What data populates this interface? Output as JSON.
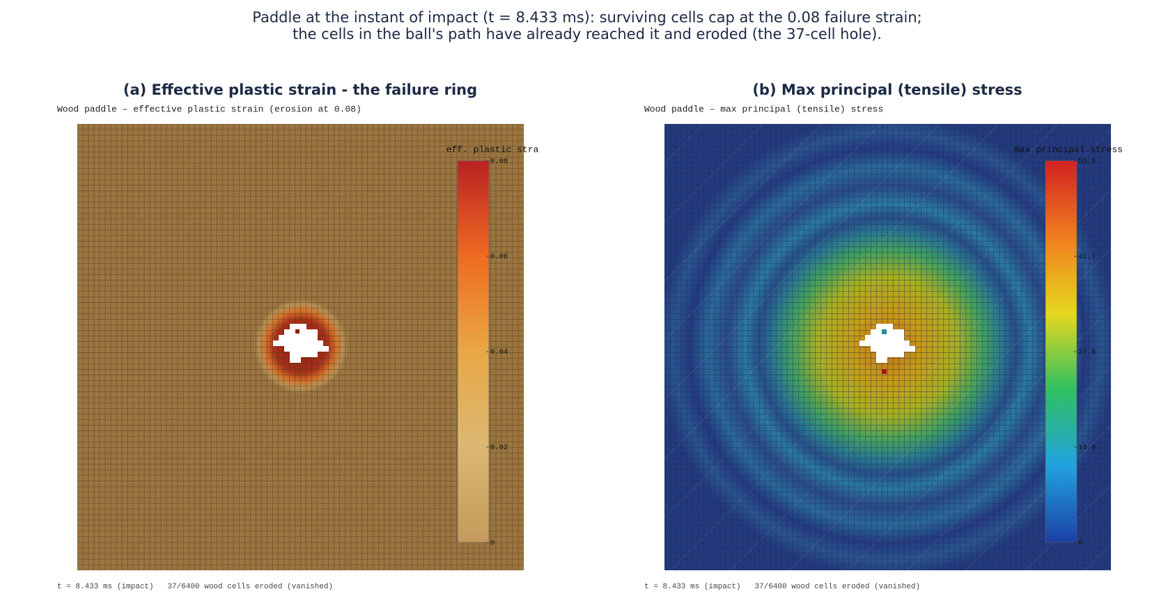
{
  "header": {
    "title_lines": [
      "Paddle at the instant of impact (t = 8.433 ms): surviving cells cap at the 0.08 failure strain;",
      "the cells in the ball's path have already reached it and eroded (the 37-cell hole)."
    ]
  },
  "panels": [
    {
      "title": "(a) Effective plastic strain - the failure ring",
      "subtitle": "Wood paddle – effective plastic strain (erosion at 0.08)",
      "footer": "t = 8.433 ms (impact)   37/6400 wood cells eroded (vanished)",
      "colorbar": {
        "title": "eff. plastic stra",
        "lim": [
          0,
          0.08
        ],
        "ticks": [
          0,
          0.02,
          0.04,
          0.06,
          0.08
        ],
        "colors": [
          "#c39a5c",
          "#dbb872",
          "#e8a845",
          "#ef6a22",
          "#b82222"
        ]
      }
    },
    {
      "title": "(b) Max principal (tensile) stress",
      "subtitle": "Wood paddle – max principal (tensile) stress",
      "footer": "t = 8.433 ms (impact)   37/6400 wood cells eroded (vanished)",
      "colorbar": {
        "title": "max principal stress",
        "lim": [
          0,
          55.6
        ],
        "ticks": [
          0,
          13.9,
          27.8,
          41.7,
          55.6
        ],
        "colors": [
          "#1b3fa6",
          "#21a2df",
          "#2fc062",
          "#e6d81e",
          "#f07d1f",
          "#d12121"
        ]
      }
    }
  ]
}
